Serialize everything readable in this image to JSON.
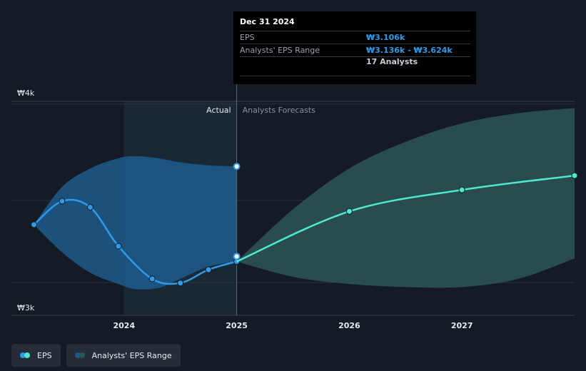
{
  "tooltip": {
    "date": "Dec 31 2024",
    "eps_label": "EPS",
    "eps_value": "₩3.106k",
    "range_label": "Analysts' EPS Range",
    "range_value": "₩3.136k - ₩3.624k",
    "analysts": "17 Analysts"
  },
  "legend": {
    "eps": "EPS",
    "range": "Analysts' EPS Range"
  },
  "colors": {
    "background": "#151b24",
    "actual_line": "#2d9bea",
    "forecast_line": "#4de8cf",
    "actual_band": "#1d5a8c",
    "forecast_band": "#2d5656"
  },
  "chart_data": {
    "type": "line",
    "y_ticks": [
      {
        "value": 3000,
        "label": "₩3k"
      },
      {
        "value": 4000,
        "label": "₩4k"
      }
    ],
    "x_ticks": [
      {
        "value": 2024.0,
        "label": "2024"
      },
      {
        "value": 2025.0,
        "label": "2025"
      },
      {
        "value": 2026.0,
        "label": "2026"
      },
      {
        "value": 2027.0,
        "label": "2027"
      }
    ],
    "xlim": [
      2023.0,
      2028.0
    ],
    "ylim": [
      2970,
      4020
    ],
    "section_labels": {
      "actual": "Actual",
      "forecast": "Analysts Forecasts"
    },
    "divider_x": 2025.0,
    "series": [
      {
        "name": "EPS",
        "kind": "actual",
        "x": [
          2023.2,
          2023.45,
          2023.7,
          2023.95,
          2024.25,
          2024.5,
          2024.75,
          2025.0
        ],
        "y": [
          3375,
          3490,
          3460,
          3270,
          3110,
          3090,
          3155,
          3195
        ]
      },
      {
        "name": "EPS",
        "kind": "forecast",
        "x": [
          2025.0,
          2026.0,
          2027.0,
          2028.0
        ],
        "y": [
          3195,
          3440,
          3545,
          3615
        ]
      }
    ],
    "actual_range": {
      "x": [
        2023.2,
        2023.45,
        2023.7,
        2023.95,
        2024.1,
        2024.3,
        2024.5,
        2024.75,
        2025.0
      ],
      "upper": [
        3375,
        3560,
        3650,
        3700,
        3710,
        3700,
        3680,
        3665,
        3660
      ],
      "lower": [
        3375,
        3240,
        3140,
        3085,
        3060,
        3065,
        3110,
        3170,
        3195
      ]
    },
    "forecast_range": {
      "x": [
        2025.0,
        2025.5,
        2026.0,
        2026.5,
        2027.0,
        2027.5,
        2028.0
      ],
      "upper": [
        3195,
        3450,
        3650,
        3780,
        3870,
        3920,
        3945
      ],
      "lower": [
        3195,
        3120,
        3085,
        3070,
        3070,
        3110,
        3210
      ]
    },
    "tooltip_points": [
      {
        "x": 2025.0,
        "y": 3660
      },
      {
        "x": 2025.0,
        "y": 3220
      }
    ]
  }
}
